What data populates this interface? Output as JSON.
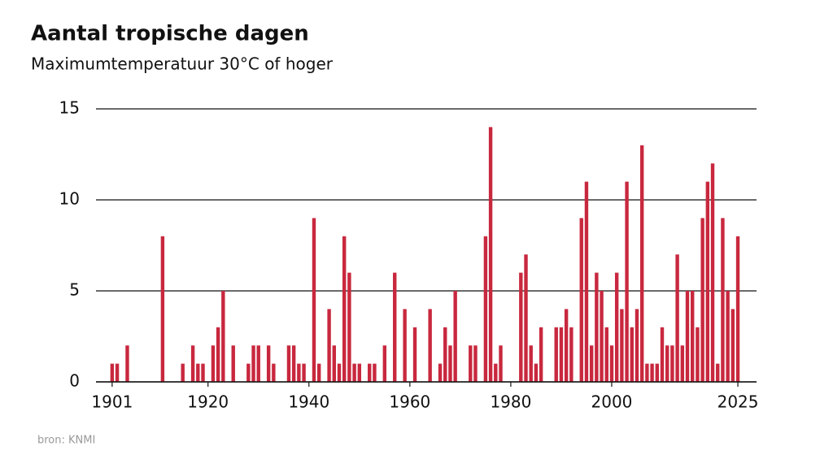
{
  "chart_data": {
    "type": "bar",
    "title": "Aantal tropische dagen",
    "subtitle": "Maximumtemperatuur 30°C of hoger",
    "source": "bron: KNMI",
    "color": "#c8283e",
    "x": [
      1901,
      1902,
      1903,
      1904,
      1905,
      1906,
      1907,
      1908,
      1909,
      1910,
      1911,
      1912,
      1913,
      1914,
      1915,
      1916,
      1917,
      1918,
      1919,
      1920,
      1921,
      1922,
      1923,
      1924,
      1925,
      1926,
      1927,
      1928,
      1929,
      1930,
      1931,
      1932,
      1933,
      1934,
      1935,
      1936,
      1937,
      1938,
      1939,
      1940,
      1941,
      1942,
      1943,
      1944,
      1945,
      1946,
      1947,
      1948,
      1949,
      1950,
      1951,
      1952,
      1953,
      1954,
      1955,
      1956,
      1957,
      1958,
      1959,
      1960,
      1961,
      1962,
      1963,
      1964,
      1965,
      1966,
      1967,
      1968,
      1969,
      1970,
      1971,
      1972,
      1973,
      1974,
      1975,
      1976,
      1977,
      1978,
      1979,
      1980,
      1981,
      1982,
      1983,
      1984,
      1985,
      1986,
      1987,
      1988,
      1989,
      1990,
      1991,
      1992,
      1993,
      1994,
      1995,
      1996,
      1997,
      1998,
      1999,
      2000,
      2001,
      2002,
      2003,
      2004,
      2005,
      2006,
      2007,
      2008,
      2009,
      2010,
      2011,
      2012,
      2013,
      2014,
      2015,
      2016,
      2017,
      2018,
      2019,
      2020,
      2021,
      2022,
      2023,
      2024,
      2025
    ],
    "values": [
      1,
      1,
      0,
      2,
      0,
      0,
      0,
      0,
      0,
      0,
      8,
      0,
      0,
      0,
      1,
      0,
      2,
      1,
      1,
      0,
      2,
      3,
      5,
      0,
      2,
      0,
      0,
      1,
      2,
      2,
      0,
      2,
      1,
      0,
      0,
      2,
      2,
      1,
      1,
      0,
      9,
      1,
      0,
      4,
      2,
      1,
      8,
      6,
      1,
      1,
      0,
      1,
      1,
      0,
      2,
      0,
      6,
      0,
      4,
      0,
      3,
      0,
      0,
      4,
      0,
      1,
      3,
      2,
      5,
      0,
      0,
      2,
      2,
      0,
      8,
      14,
      1,
      2,
      0,
      0,
      0,
      6,
      7,
      2,
      1,
      3,
      0,
      0,
      3,
      3,
      4,
      3,
      0,
      9,
      11,
      2,
      6,
      5,
      3,
      2,
      6,
      4,
      11,
      3,
      4,
      13,
      1,
      1,
      1,
      3,
      2,
      2,
      7,
      2,
      5,
      5,
      3,
      9,
      11,
      12,
      1,
      9,
      5,
      4,
      8
    ],
    "xlim": [
      1897.8,
      2028.7
    ],
    "xticks": [
      1901,
      1920,
      1940,
      1960,
      1980,
      2000,
      2025
    ],
    "ylim": [
      0,
      15
    ],
    "yticks": [
      0,
      5,
      10,
      15
    ],
    "grid": true
  }
}
